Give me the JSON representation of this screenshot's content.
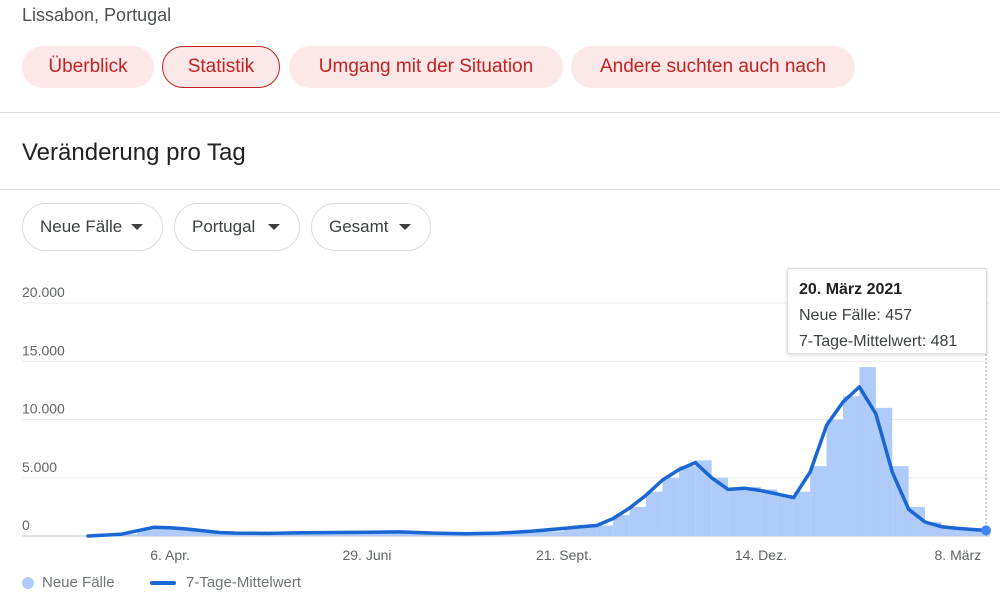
{
  "header": {
    "location": "Lissabon, Portugal",
    "tabs": [
      {
        "label": "Überblick",
        "active": false
      },
      {
        "label": "Statistik",
        "active": true
      },
      {
        "label": "Umgang mit der Situation",
        "active": false
      },
      {
        "label": "Andere suchten auch nach",
        "active": false
      }
    ]
  },
  "section": {
    "title": "Veränderung pro Tag"
  },
  "filters": {
    "metric": "Neue Fälle",
    "region": "Portugal",
    "scope": "Gesamt"
  },
  "tooltip": {
    "date": "20. März 2021",
    "new_cases_label": "Neue Fälle: 457",
    "avg_label": "7-Tage-Mittelwert: 481"
  },
  "legend": {
    "bars": "Neue Fälle",
    "line": "7-Tage-Mittelwert"
  },
  "colors": {
    "accent": "#c5221f",
    "chip_bg": "#fce8e9",
    "bars": "#aecbfa",
    "line": "#1a66d2"
  },
  "chart_data": {
    "type": "bar",
    "title": "",
    "xlabel": "",
    "ylabel": "",
    "ylim": [
      0,
      20000
    ],
    "yticks": [
      "0",
      "5.000",
      "10.000",
      "15.000",
      "20.000"
    ],
    "xticks": [
      {
        "label": "6. Apr.",
        "date": "2020-04-06"
      },
      {
        "label": "29. Juni",
        "date": "2020-06-29"
      },
      {
        "label": "21. Sept.",
        "date": "2020-09-21"
      },
      {
        "label": "14. Dez.",
        "date": "2020-12-14"
      },
      {
        "label": "8. März",
        "date": "2021-03-08"
      }
    ],
    "x_range": [
      "2020-03-02",
      "2021-03-20"
    ],
    "grid": true,
    "legend_position": "bottom-left",
    "series": [
      {
        "name": "Neue Fälle",
        "type": "bar",
        "points": [
          [
            "2020-03-02",
            0
          ],
          [
            "2020-03-16",
            150
          ],
          [
            "2020-03-23",
            600
          ],
          [
            "2020-03-30",
            800
          ],
          [
            "2020-04-06",
            700
          ],
          [
            "2020-04-13",
            600
          ],
          [
            "2020-04-20",
            400
          ],
          [
            "2020-04-27",
            300
          ],
          [
            "2020-05-04",
            250
          ],
          [
            "2020-05-18",
            250
          ],
          [
            "2020-06-01",
            300
          ],
          [
            "2020-06-15",
            300
          ],
          [
            "2020-06-29",
            350
          ],
          [
            "2020-07-13",
            350
          ],
          [
            "2020-07-27",
            300
          ],
          [
            "2020-08-10",
            200
          ],
          [
            "2020-08-24",
            250
          ],
          [
            "2020-09-07",
            400
          ],
          [
            "2020-09-21",
            700
          ],
          [
            "2020-09-28",
            800
          ],
          [
            "2020-10-05",
            900
          ],
          [
            "2020-10-12",
            1800
          ],
          [
            "2020-10-19",
            2500
          ],
          [
            "2020-10-26",
            3800
          ],
          [
            "2020-11-02",
            5000
          ],
          [
            "2020-11-09",
            6000
          ],
          [
            "2020-11-16",
            6500
          ],
          [
            "2020-11-23",
            5000
          ],
          [
            "2020-11-30",
            4000
          ],
          [
            "2020-12-07",
            4200
          ],
          [
            "2020-12-14",
            4000
          ],
          [
            "2020-12-21",
            3500
          ],
          [
            "2020-12-28",
            3800
          ],
          [
            "2021-01-04",
            6000
          ],
          [
            "2021-01-11",
            10000
          ],
          [
            "2021-01-18",
            12000
          ],
          [
            "2021-01-25",
            14500
          ],
          [
            "2021-02-01",
            11000
          ],
          [
            "2021-02-08",
            6000
          ],
          [
            "2021-02-15",
            2500
          ],
          [
            "2021-02-22",
            1200
          ],
          [
            "2021-03-01",
            800
          ],
          [
            "2021-03-08",
            600
          ],
          [
            "2021-03-15",
            500
          ],
          [
            "2021-03-20",
            457
          ]
        ]
      },
      {
        "name": "7-Tage-Mittelwert",
        "type": "line",
        "points": [
          [
            "2020-03-02",
            0
          ],
          [
            "2020-03-16",
            150
          ],
          [
            "2020-03-23",
            450
          ],
          [
            "2020-03-30",
            750
          ],
          [
            "2020-04-06",
            700
          ],
          [
            "2020-04-13",
            600
          ],
          [
            "2020-04-20",
            450
          ],
          [
            "2020-04-27",
            300
          ],
          [
            "2020-05-04",
            250
          ],
          [
            "2020-05-18",
            220
          ],
          [
            "2020-06-01",
            280
          ],
          [
            "2020-06-15",
            300
          ],
          [
            "2020-06-29",
            330
          ],
          [
            "2020-07-13",
            350
          ],
          [
            "2020-07-27",
            250
          ],
          [
            "2020-08-10",
            200
          ],
          [
            "2020-08-24",
            250
          ],
          [
            "2020-09-07",
            400
          ],
          [
            "2020-09-21",
            650
          ],
          [
            "2020-09-28",
            800
          ],
          [
            "2020-10-05",
            900
          ],
          [
            "2020-10-12",
            1500
          ],
          [
            "2020-10-19",
            2400
          ],
          [
            "2020-10-26",
            3500
          ],
          [
            "2020-11-02",
            4800
          ],
          [
            "2020-11-09",
            5700
          ],
          [
            "2020-11-16",
            6300
          ],
          [
            "2020-11-23",
            5000
          ],
          [
            "2020-11-30",
            4000
          ],
          [
            "2020-12-07",
            4100
          ],
          [
            "2020-12-14",
            3900
          ],
          [
            "2020-12-21",
            3600
          ],
          [
            "2020-12-28",
            3300
          ],
          [
            "2021-01-04",
            5500
          ],
          [
            "2021-01-11",
            9500
          ],
          [
            "2021-01-18",
            11500
          ],
          [
            "2021-01-25",
            12800
          ],
          [
            "2021-02-01",
            10500
          ],
          [
            "2021-02-08",
            5500
          ],
          [
            "2021-02-15",
            2300
          ],
          [
            "2021-02-22",
            1200
          ],
          [
            "2021-03-01",
            800
          ],
          [
            "2021-03-08",
            650
          ],
          [
            "2021-03-15",
            550
          ],
          [
            "2021-03-20",
            481
          ]
        ]
      }
    ]
  }
}
